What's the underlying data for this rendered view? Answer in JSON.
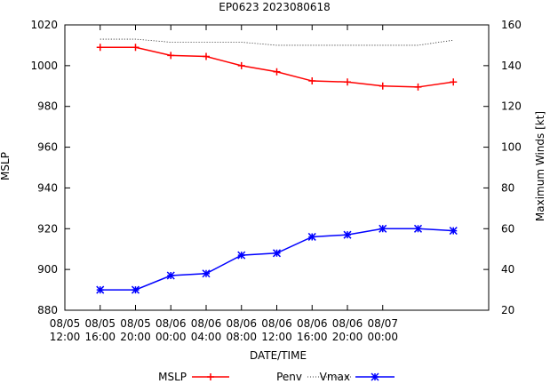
{
  "chart_data": {
    "type": "line",
    "title": "EP0623 2023080618",
    "xlabel": "DATE/TIME",
    "ylabel_left": "MSLP",
    "ylabel_right": "Maximum Winds [kt]",
    "x_hours_from_start": [
      4,
      8,
      12,
      16,
      20,
      24,
      28,
      32,
      36,
      40,
      44
    ],
    "xlim_hours": [
      0,
      48
    ],
    "x_ticks": [
      {
        "hour": 0,
        "date": "08/05",
        "time": "12:00"
      },
      {
        "hour": 4,
        "date": "08/05",
        "time": "16:00"
      },
      {
        "hour": 8,
        "date": "08/05",
        "time": "20:00"
      },
      {
        "hour": 12,
        "date": "08/06",
        "time": "00:00"
      },
      {
        "hour": 16,
        "date": "08/06",
        "time": "04:00"
      },
      {
        "hour": 20,
        "date": "08/06",
        "time": "08:00"
      },
      {
        "hour": 24,
        "date": "08/06",
        "time": "12:00"
      },
      {
        "hour": 28,
        "date": "08/06",
        "time": "16:00"
      },
      {
        "hour": 32,
        "date": "08/06",
        "time": "20:00"
      },
      {
        "hour": 36,
        "date": "08/07",
        "time": "00:00"
      }
    ],
    "ylim_left": [
      880,
      1020
    ],
    "yticks_left": [
      880,
      900,
      920,
      940,
      960,
      980,
      1000,
      1020
    ],
    "ylim_right": [
      20,
      160
    ],
    "yticks_right": [
      20,
      40,
      60,
      80,
      100,
      120,
      140,
      160
    ],
    "series": [
      {
        "name": "MSLP",
        "axis": "left",
        "color": "#ff0000",
        "marker": "plus",
        "line": "solid",
        "hours": [
          4,
          8,
          12,
          16,
          20,
          24,
          28,
          32,
          36,
          40,
          44
        ],
        "values": [
          1009,
          1009,
          1005,
          1004.5,
          1000,
          997,
          992.5,
          992,
          990,
          989.5,
          992
        ]
      },
      {
        "name": "Penv",
        "axis": "left",
        "color": "#000000",
        "marker": "none",
        "line": "dotted",
        "hours": [
          4,
          8,
          12,
          16,
          20,
          24,
          28,
          32,
          36,
          40,
          44
        ],
        "values": [
          1013,
          1013,
          1011.5,
          1011.5,
          1011.5,
          1010,
          1010,
          1010,
          1010,
          1010,
          1012.5
        ]
      },
      {
        "name": "Vmax",
        "axis": "right",
        "color": "#0000ff",
        "marker": "star",
        "line": "solid",
        "hours": [
          4,
          8,
          12,
          16,
          20,
          24,
          28,
          32,
          36,
          40,
          44
        ],
        "values": [
          30,
          30,
          37,
          38,
          47,
          48,
          56,
          57,
          60,
          60,
          59
        ]
      }
    ],
    "legend": {
      "position": "bottom",
      "entries": [
        "MSLP",
        "Penv",
        "Vmax"
      ]
    }
  }
}
